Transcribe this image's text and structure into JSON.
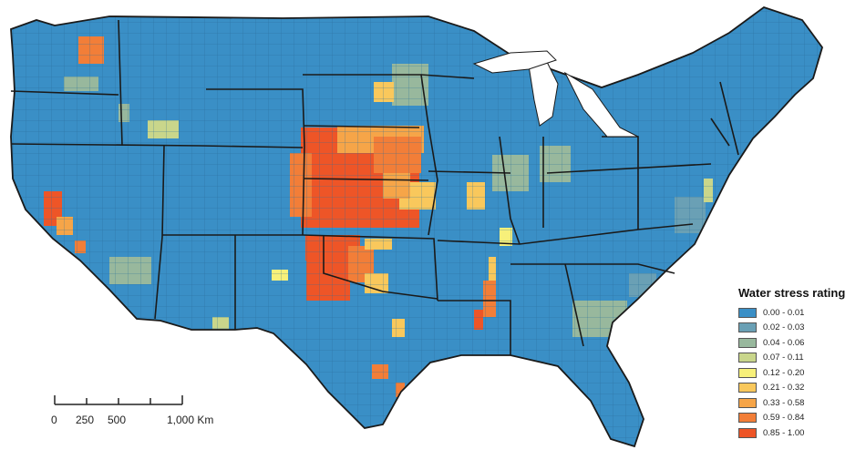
{
  "legend": {
    "title": "Water stress rating",
    "classes": [
      {
        "label": "0.00 - 0.01",
        "color": "#3a8fc6"
      },
      {
        "label": "0.02 - 0.03",
        "color": "#6aa0b5"
      },
      {
        "label": "0.04 - 0.06",
        "color": "#98b89d"
      },
      {
        "label": "0.07 - 0.11",
        "color": "#c9d68b"
      },
      {
        "label": "0.12 - 0.20",
        "color": "#f7f07a"
      },
      {
        "label": "0.21 - 0.32",
        "color": "#f9c85c"
      },
      {
        "label": "0.33 - 0.58",
        "color": "#f6a548"
      },
      {
        "label": "0.59 - 0.84",
        "color": "#f27e38"
      },
      {
        "label": "0.85 - 1.00",
        "color": "#ee5527"
      }
    ]
  },
  "scale_bar": {
    "labels": [
      "0",
      "250",
      "500",
      "1,000 Km"
    ]
  },
  "map": {
    "base_color": "#3a8fc6",
    "border_color": "#1a1a1a"
  }
}
